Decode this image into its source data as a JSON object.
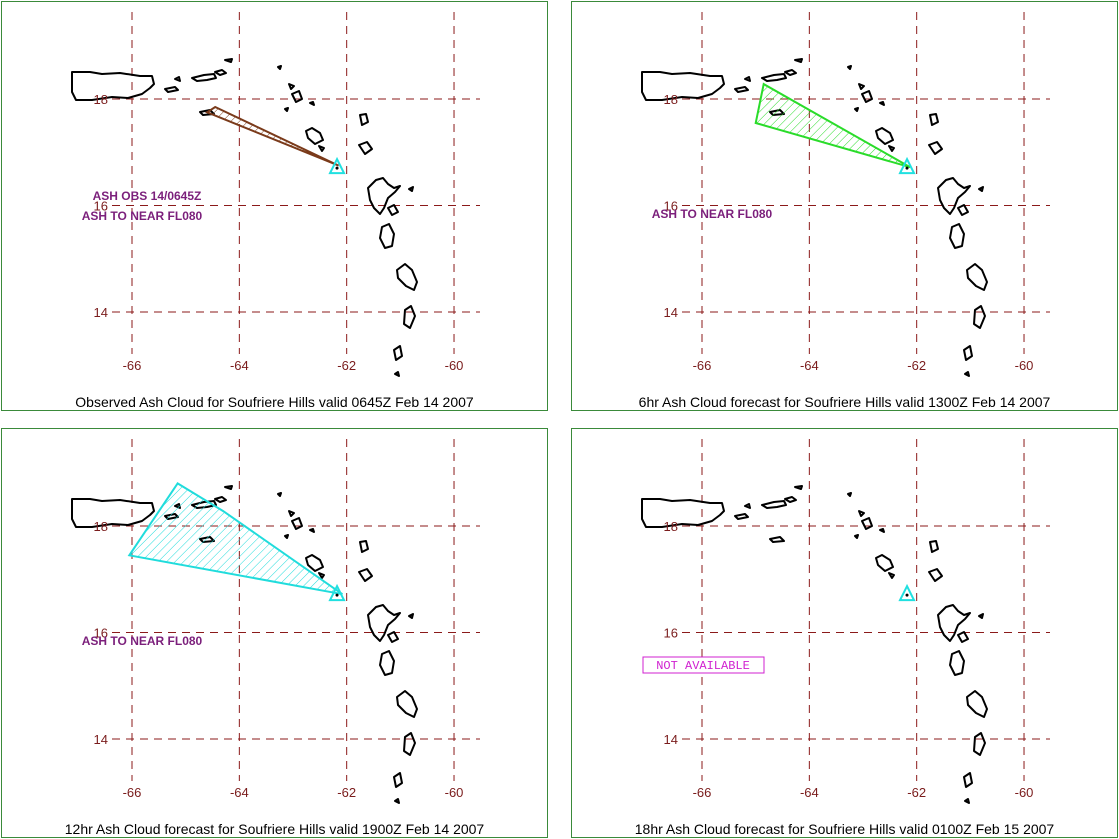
{
  "colors": {
    "grid": "#8b1a1a",
    "tick_label": "#7a1c1c",
    "annotation": "#7b1f7b",
    "panel_border": "#3a8a3a",
    "volcano_marker": "#20e0e0",
    "not_available": "#d020d0",
    "ash_observed": "#7a3a1a",
    "ash_6hr": "#2adc2a",
    "ash_12hr": "#20dcdc"
  },
  "map": {
    "lon_ticks": [
      -66,
      -64,
      -62,
      -60
    ],
    "lat_ticks": [
      18,
      16,
      14
    ],
    "lon_range": [
      -67.2,
      -59.4
    ],
    "lat_range": [
      12.9,
      19.6
    ],
    "volcano": {
      "name": "Soufriere Hills",
      "lon": -62.18,
      "lat": 16.72
    }
  },
  "panels": [
    {
      "caption": "Observed Ash Cloud for Soufriere  Hills valid 0645Z Feb 14 2007",
      "annotations": [
        "ASH OBS 14/0645Z",
        "ASH TO NEAR FL080"
      ],
      "ash_polygon": [
        [
          -64.6,
          17.75
        ],
        [
          -64.45,
          17.85
        ],
        [
          -62.15,
          16.75
        ]
      ],
      "ash_color": "#7a3a1a",
      "not_available": ""
    },
    {
      "caption": "6hr Ash Cloud forecast for Soufriere  Hills valid 1300Z Feb 14 2007",
      "annotations": [
        "ASH TO NEAR FL080"
      ],
      "ash_polygon": [
        [
          -64.85,
          18.28
        ],
        [
          -65.0,
          17.55
        ],
        [
          -62.12,
          16.72
        ]
      ],
      "ash_color": "#2adc2a",
      "not_available": ""
    },
    {
      "caption": "12hr Ash Cloud forecast for Soufriere  Hills valid 1900Z Feb 14 2007",
      "annotations": [
        "ASH TO NEAR FL080"
      ],
      "ash_polygon": [
        [
          -65.15,
          18.8
        ],
        [
          -66.05,
          17.45
        ],
        [
          -62.08,
          16.72
        ],
        [
          -64.3,
          18.28
        ]
      ],
      "ash_color": "#20dcdc",
      "not_available": ""
    },
    {
      "caption": "18hr Ash Cloud forecast for Soufriere  Hills valid 0100Z Feb 15 2007",
      "annotations": [],
      "ash_polygon": [],
      "ash_color": "",
      "not_available": "NOT AVAILABLE"
    }
  ]
}
